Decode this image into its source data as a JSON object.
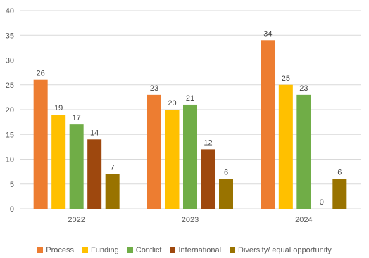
{
  "chart_data": {
    "type": "bar",
    "categories": [
      "2022",
      "2023",
      "2024"
    ],
    "ylim": [
      0,
      40
    ],
    "yticks": [
      0,
      5,
      10,
      15,
      20,
      25,
      30,
      35,
      40
    ],
    "grid": true,
    "legend_position": "bottom",
    "series": [
      {
        "name": "Process",
        "color": "#ED7D31",
        "values": [
          26,
          23,
          34
        ]
      },
      {
        "name": "Funding",
        "color": "#FFC000",
        "values": [
          19,
          20,
          25
        ]
      },
      {
        "name": "Conflict",
        "color": "#70AD47",
        "values": [
          17,
          21,
          23
        ]
      },
      {
        "name": "International",
        "color": "#9E480E",
        "values": [
          14,
          12,
          0
        ]
      },
      {
        "name": "Diversity/ equal opportunity",
        "color": "#997300",
        "values": [
          7,
          6,
          6
        ]
      }
    ]
  }
}
